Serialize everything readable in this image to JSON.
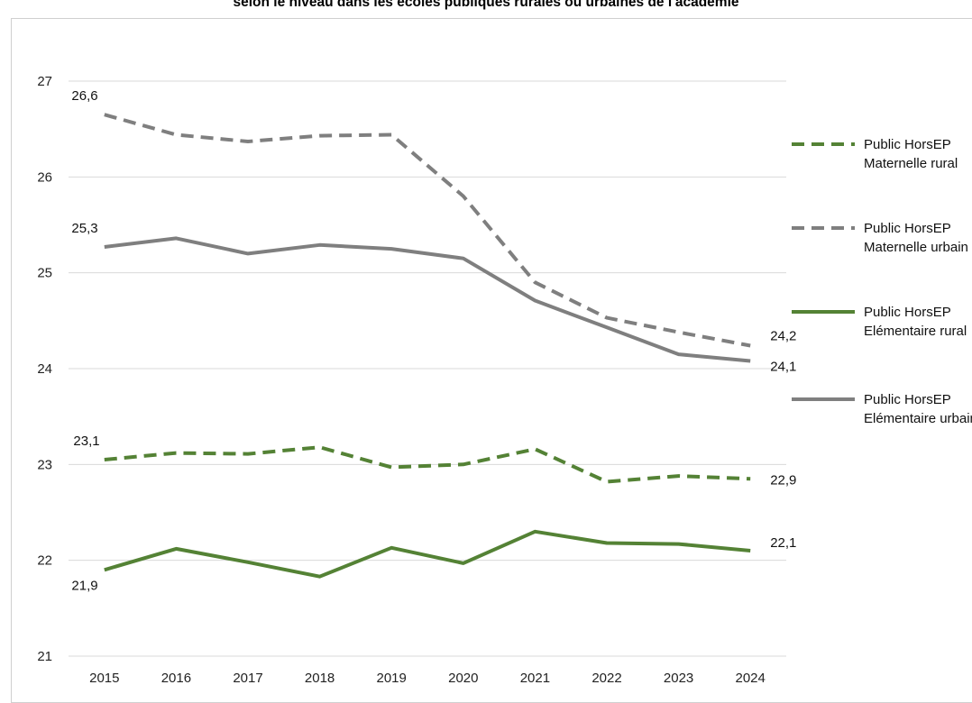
{
  "title": "selon le niveau dans les écoles publiques rurales ou urbaines de l'académie",
  "chart_data": {
    "type": "line",
    "title": "selon le niveau dans les écoles publiques rurales ou urbaines de l'académie",
    "xlabel": "",
    "ylabel": "",
    "categories": [
      "2015",
      "2016",
      "2017",
      "2018",
      "2019",
      "2020",
      "2021",
      "2022",
      "2023",
      "2024"
    ],
    "y_ticks": [
      "21",
      "22",
      "23",
      "24",
      "25",
      "26",
      "27"
    ],
    "ylim": [
      21,
      27
    ],
    "grid": "horizontal",
    "legend_position": "right",
    "series": [
      {
        "name": "Public HorsEP Maternelle rural",
        "color": "#548235",
        "style": "dashed",
        "values": [
          23.05,
          23.12,
          23.11,
          23.18,
          22.97,
          23.0,
          23.16,
          22.82,
          22.88,
          22.85
        ],
        "labels": {
          "start": "23,1",
          "end": "22,9"
        }
      },
      {
        "name": "Public HorsEP Maternelle urbain",
        "color": "#7f7f7f",
        "style": "dashed",
        "values": [
          26.65,
          26.44,
          26.37,
          26.43,
          26.44,
          25.8,
          24.9,
          24.53,
          24.38,
          24.24
        ],
        "labels": {
          "start": "26,6",
          "end": "24,2"
        }
      },
      {
        "name": "Public HorsEP Elémentaire rural",
        "color": "#548235",
        "style": "solid",
        "values": [
          21.9,
          22.12,
          21.98,
          21.83,
          22.13,
          21.97,
          22.3,
          22.18,
          22.17,
          22.1
        ],
        "labels": {
          "start": "21,9",
          "end": "22,1"
        }
      },
      {
        "name": "Public HorsEP Elémentaire urbain",
        "color": "#7f7f7f",
        "style": "solid",
        "values": [
          25.27,
          25.36,
          25.2,
          25.29,
          25.25,
          25.15,
          24.71,
          24.43,
          24.15,
          24.08
        ],
        "labels": {
          "start": "25,3",
          "end": "24,1"
        }
      }
    ]
  }
}
